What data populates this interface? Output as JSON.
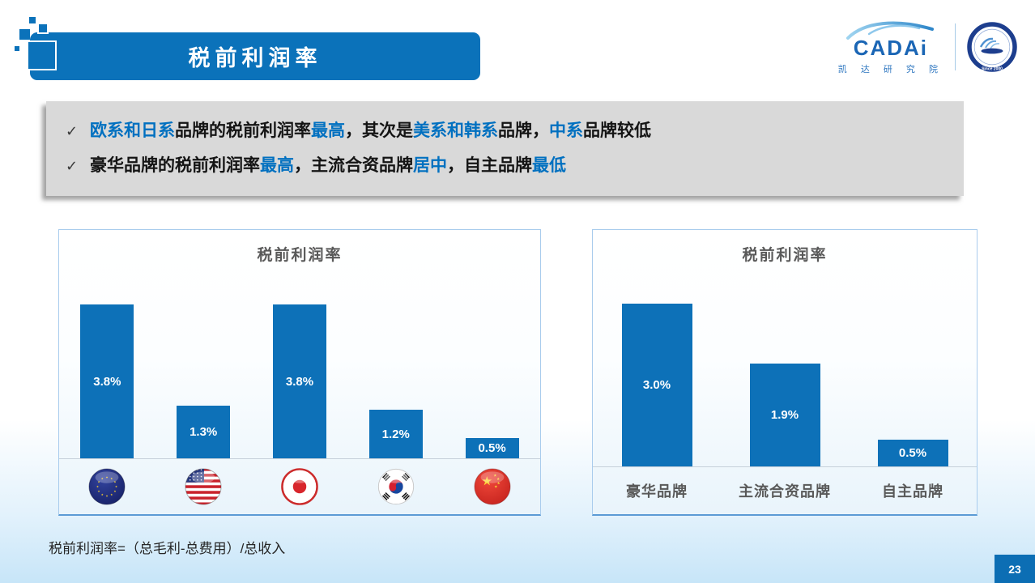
{
  "slide": {
    "title": "税前利润率",
    "page_number": "23",
    "footnote": "税前利润率=（总毛利-总费用）/总收入"
  },
  "logo": {
    "brand": "CADAi",
    "brand_sub": "凯 达 研 究 院",
    "emblem_text": "Since 2000",
    "icons": [
      "car-swoosh-icon",
      "cada-emblem-icon"
    ]
  },
  "callout": {
    "check_glyph": "✓",
    "bullets": [
      {
        "segments": [
          {
            "t": "欧系和日系",
            "c": "blue"
          },
          {
            "t": "品牌的税前利润率",
            "c": "dark"
          },
          {
            "t": "最高",
            "c": "blue"
          },
          {
            "t": "，其次是",
            "c": "dark"
          },
          {
            "t": "美系和韩系",
            "c": "blue"
          },
          {
            "t": "品牌，",
            "c": "dark"
          },
          {
            "t": "中系",
            "c": "blue"
          },
          {
            "t": "品牌较低",
            "c": "dark"
          }
        ]
      },
      {
        "segments": [
          {
            "t": "豪华品牌的税前利润率",
            "c": "dark"
          },
          {
            "t": "最高",
            "c": "blue"
          },
          {
            "t": "，主流合资品牌",
            "c": "dark"
          },
          {
            "t": "居中",
            "c": "blue"
          },
          {
            "t": "，自主品牌",
            "c": "dark"
          },
          {
            "t": "最低",
            "c": "blue"
          }
        ]
      }
    ]
  },
  "chart_data": [
    {
      "type": "bar",
      "title": "税前利润率",
      "categories": [
        "EU (欧系)",
        "USA (美系)",
        "Japan (日系)",
        "South Korea (韩系)",
        "China (中系)"
      ],
      "category_icons": [
        "eu-flag-icon",
        "us-flag-icon",
        "japan-flag-icon",
        "korea-flag-icon",
        "china-flag-icon"
      ],
      "values": [
        3.8,
        1.3,
        3.8,
        1.2,
        0.5
      ],
      "labels": [
        "3.8%",
        "1.3%",
        "3.8%",
        "1.2%",
        "0.5%"
      ],
      "unit": "%",
      "legend": "none",
      "grid": false
    },
    {
      "type": "bar",
      "title": "税前利润率",
      "categories": [
        "豪华品牌",
        "主流合资品牌",
        "自主品牌"
      ],
      "values": [
        3.0,
        1.9,
        0.5
      ],
      "labels": [
        "3.0%",
        "1.9%",
        "0.5%"
      ],
      "unit": "%",
      "legend": "none",
      "grid": false
    }
  ],
  "colors": {
    "accent_blue": "#0b72ba",
    "bar_blue": "#0d71b8",
    "text_blue": "#0070C0",
    "text_dark": "#141414",
    "callout_gray": "#d9d9d9",
    "chart_border": "#a9cced",
    "chart_title_gray": "#595959",
    "page_tab_blue": "#0c6eb4"
  }
}
